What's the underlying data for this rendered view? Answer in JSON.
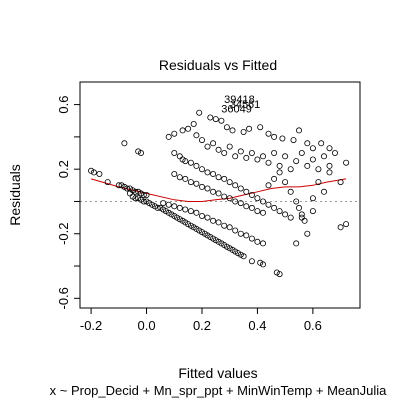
{
  "chart_data": {
    "type": "scatter",
    "title": "Residuals vs Fitted",
    "xlabel": "Fitted values",
    "ylabel": "Residuals",
    "subtitle": "x ~ Prop_Decid + Mn_spr_ppt + MinWinTemp + MeanJulia",
    "xlim": [
      -0.24,
      0.77
    ],
    "ylim": [
      -0.66,
      0.74
    ],
    "x_ticks": [
      -0.2,
      0.0,
      0.2,
      0.4,
      0.6
    ],
    "x_tick_labels": [
      "-0.2",
      "0.0",
      "0.2",
      "0.4",
      "0.6"
    ],
    "y_ticks": [
      -0.6,
      -0.4,
      -0.2,
      0.0,
      0.2,
      0.4,
      0.6
    ],
    "y_tick_labels": [
      "-0.6",
      "",
      "-0.2",
      "",
      "0.2",
      "",
      "0.6"
    ],
    "reference_line_y": 0,
    "outlier_labels": [
      {
        "text": "39418",
        "x": 0.335,
        "y": 0.61
      },
      {
        "text": "34561",
        "x": 0.355,
        "y": 0.58
      },
      {
        "text": "36049",
        "x": 0.325,
        "y": 0.55
      }
    ],
    "smooth_line": [
      [
        -0.2,
        0.14
      ],
      [
        -0.1,
        0.09
      ],
      [
        0.0,
        0.05
      ],
      [
        0.1,
        0.01
      ],
      [
        0.15,
        0.0
      ],
      [
        0.2,
        0.0
      ],
      [
        0.25,
        0.01
      ],
      [
        0.3,
        0.02
      ],
      [
        0.35,
        0.04
      ],
      [
        0.4,
        0.06
      ],
      [
        0.45,
        0.08
      ],
      [
        0.5,
        0.09
      ],
      [
        0.55,
        0.09
      ],
      [
        0.6,
        0.1
      ],
      [
        0.65,
        0.12
      ],
      [
        0.72,
        0.14
      ]
    ],
    "points": [
      [
        -0.2,
        0.19
      ],
      [
        -0.19,
        0.18
      ],
      [
        -0.17,
        0.17
      ],
      [
        -0.14,
        0.12
      ],
      [
        -0.1,
        0.1
      ],
      [
        -0.09,
        0.1
      ],
      [
        -0.08,
        0.09
      ],
      [
        -0.07,
        0.08
      ],
      [
        -0.06,
        0.08
      ],
      [
        -0.05,
        0.07
      ],
      [
        -0.04,
        0.06
      ],
      [
        -0.03,
        0.06
      ],
      [
        -0.02,
        0.05
      ],
      [
        -0.01,
        0.04
      ],
      [
        0.0,
        0.04
      ],
      [
        -0.08,
        0.36
      ],
      [
        -0.03,
        0.31
      ],
      [
        -0.02,
        0.3
      ],
      [
        -0.06,
        0.05
      ],
      [
        -0.05,
        0.03
      ],
      [
        -0.04,
        0.02
      ],
      [
        -0.03,
        0.02
      ],
      [
        -0.02,
        0.01
      ],
      [
        -0.01,
        0.0
      ],
      [
        0.0,
        0.0
      ],
      [
        0.01,
        -0.01
      ],
      [
        0.02,
        -0.02
      ],
      [
        0.03,
        -0.03
      ],
      [
        0.04,
        -0.04
      ],
      [
        0.05,
        -0.04
      ],
      [
        0.06,
        -0.05
      ],
      [
        0.07,
        -0.06
      ],
      [
        0.08,
        -0.07
      ],
      [
        0.09,
        -0.08
      ],
      [
        0.1,
        -0.09
      ],
      [
        0.11,
        -0.1
      ],
      [
        0.12,
        -0.11
      ],
      [
        0.13,
        -0.12
      ],
      [
        0.14,
        -0.13
      ],
      [
        0.15,
        -0.14
      ],
      [
        0.16,
        -0.15
      ],
      [
        0.17,
        -0.16
      ],
      [
        0.18,
        -0.17
      ],
      [
        0.19,
        -0.18
      ],
      [
        0.2,
        -0.19
      ],
      [
        0.21,
        -0.2
      ],
      [
        0.22,
        -0.21
      ],
      [
        0.23,
        -0.22
      ],
      [
        0.24,
        -0.23
      ],
      [
        0.25,
        -0.24
      ],
      [
        0.26,
        -0.25
      ],
      [
        0.27,
        -0.26
      ],
      [
        0.28,
        -0.27
      ],
      [
        0.29,
        -0.28
      ],
      [
        0.3,
        -0.29
      ],
      [
        0.31,
        -0.3
      ],
      [
        0.32,
        -0.31
      ],
      [
        0.33,
        -0.32
      ],
      [
        0.34,
        -0.33
      ],
      [
        0.35,
        -0.34
      ],
      [
        0.38,
        -0.37
      ],
      [
        0.41,
        -0.38
      ],
      [
        0.42,
        -0.39
      ],
      [
        0.47,
        -0.44
      ],
      [
        0.48,
        -0.45
      ],
      [
        0.06,
        -0.01
      ],
      [
        0.08,
        -0.02
      ],
      [
        0.1,
        -0.03
      ],
      [
        0.12,
        -0.04
      ],
      [
        0.14,
        -0.05
      ],
      [
        0.16,
        -0.06
      ],
      [
        0.18,
        -0.07
      ],
      [
        0.2,
        -0.09
      ],
      [
        0.22,
        -0.1
      ],
      [
        0.24,
        -0.12
      ],
      [
        0.26,
        -0.13
      ],
      [
        0.28,
        -0.15
      ],
      [
        0.3,
        -0.16
      ],
      [
        0.32,
        -0.18
      ],
      [
        0.34,
        -0.2
      ],
      [
        0.36,
        -0.21
      ],
      [
        0.38,
        -0.23
      ],
      [
        0.4,
        -0.25
      ],
      [
        0.42,
        -0.26
      ],
      [
        0.1,
        0.3
      ],
      [
        0.12,
        0.28
      ],
      [
        0.13,
        0.26
      ],
      [
        0.14,
        0.25
      ],
      [
        0.16,
        0.24
      ],
      [
        0.18,
        0.22
      ],
      [
        0.2,
        0.2
      ],
      [
        0.22,
        0.18
      ],
      [
        0.24,
        0.17
      ],
      [
        0.26,
        0.15
      ],
      [
        0.28,
        0.14
      ],
      [
        0.3,
        0.12
      ],
      [
        0.32,
        0.1
      ],
      [
        0.34,
        0.08
      ],
      [
        0.36,
        0.06
      ],
      [
        0.38,
        0.04
      ],
      [
        0.4,
        0.02
      ],
      [
        0.42,
        0.0
      ],
      [
        0.44,
        -0.02
      ],
      [
        0.46,
        -0.04
      ],
      [
        0.48,
        -0.06
      ],
      [
        0.5,
        -0.08
      ],
      [
        0.52,
        -0.1
      ],
      [
        0.1,
        0.17
      ],
      [
        0.12,
        0.15
      ],
      [
        0.14,
        0.14
      ],
      [
        0.16,
        0.12
      ],
      [
        0.18,
        0.11
      ],
      [
        0.2,
        0.09
      ],
      [
        0.22,
        0.08
      ],
      [
        0.24,
        0.06
      ],
      [
        0.26,
        0.05
      ],
      [
        0.28,
        0.03
      ],
      [
        0.3,
        0.02
      ],
      [
        0.32,
        0.0
      ],
      [
        0.34,
        -0.01
      ],
      [
        0.36,
        -0.03
      ],
      [
        0.38,
        -0.04
      ],
      [
        0.4,
        -0.06
      ],
      [
        0.42,
        -0.07
      ],
      [
        0.08,
        0.4
      ],
      [
        0.1,
        0.42
      ],
      [
        0.13,
        0.44
      ],
      [
        0.15,
        0.45
      ],
      [
        0.17,
        0.48
      ],
      [
        0.18,
        0.41
      ],
      [
        0.19,
        0.55
      ],
      [
        0.23,
        0.52
      ],
      [
        0.25,
        0.51
      ],
      [
        0.27,
        0.5
      ],
      [
        0.29,
        0.46
      ],
      [
        0.31,
        0.44
      ],
      [
        0.35,
        0.43
      ],
      [
        0.37,
        0.45
      ],
      [
        0.41,
        0.46
      ],
      [
        0.44,
        0.42
      ],
      [
        0.46,
        0.4
      ],
      [
        0.49,
        0.39
      ],
      [
        0.53,
        0.38
      ],
      [
        0.55,
        0.44
      ],
      [
        0.58,
        0.36
      ],
      [
        0.6,
        0.33
      ],
      [
        0.63,
        0.36
      ],
      [
        0.66,
        0.33
      ],
      [
        0.72,
        0.24
      ],
      [
        0.2,
        0.38
      ],
      [
        0.22,
        0.34
      ],
      [
        0.24,
        0.36
      ],
      [
        0.26,
        0.32
      ],
      [
        0.28,
        0.3
      ],
      [
        0.3,
        0.34
      ],
      [
        0.32,
        0.28
      ],
      [
        0.34,
        0.31
      ],
      [
        0.36,
        0.27
      ],
      [
        0.38,
        0.3
      ],
      [
        0.4,
        0.26
      ],
      [
        0.42,
        0.28
      ],
      [
        0.44,
        0.24
      ],
      [
        0.46,
        0.3
      ],
      [
        0.48,
        0.22
      ],
      [
        0.5,
        0.28
      ],
      [
        0.52,
        0.2
      ],
      [
        0.54,
        0.25
      ],
      [
        0.56,
        0.3
      ],
      [
        0.58,
        0.22
      ],
      [
        0.6,
        0.26
      ],
      [
        0.62,
        0.2
      ],
      [
        0.64,
        0.28
      ],
      [
        0.66,
        0.22
      ],
      [
        0.68,
        0.3
      ],
      [
        0.5,
        0.12
      ],
      [
        0.52,
        0.06
      ],
      [
        0.54,
        0.0
      ],
      [
        0.55,
        -0.04
      ],
      [
        0.56,
        -0.08
      ],
      [
        0.57,
        -0.12
      ],
      [
        0.58,
        -0.2
      ],
      [
        0.54,
        -0.26
      ],
      [
        0.56,
        -0.1
      ],
      [
        0.6,
        0.02
      ],
      [
        0.62,
        0.12
      ],
      [
        0.64,
        0.06
      ],
      [
        0.66,
        0.18
      ],
      [
        0.7,
        0.12
      ],
      [
        0.72,
        -0.14
      ],
      [
        0.7,
        -0.16
      ],
      [
        0.48,
        0.18
      ],
      [
        0.46,
        0.14
      ],
      [
        0.44,
        0.1
      ],
      [
        0.6,
        -0.06
      ]
    ]
  }
}
